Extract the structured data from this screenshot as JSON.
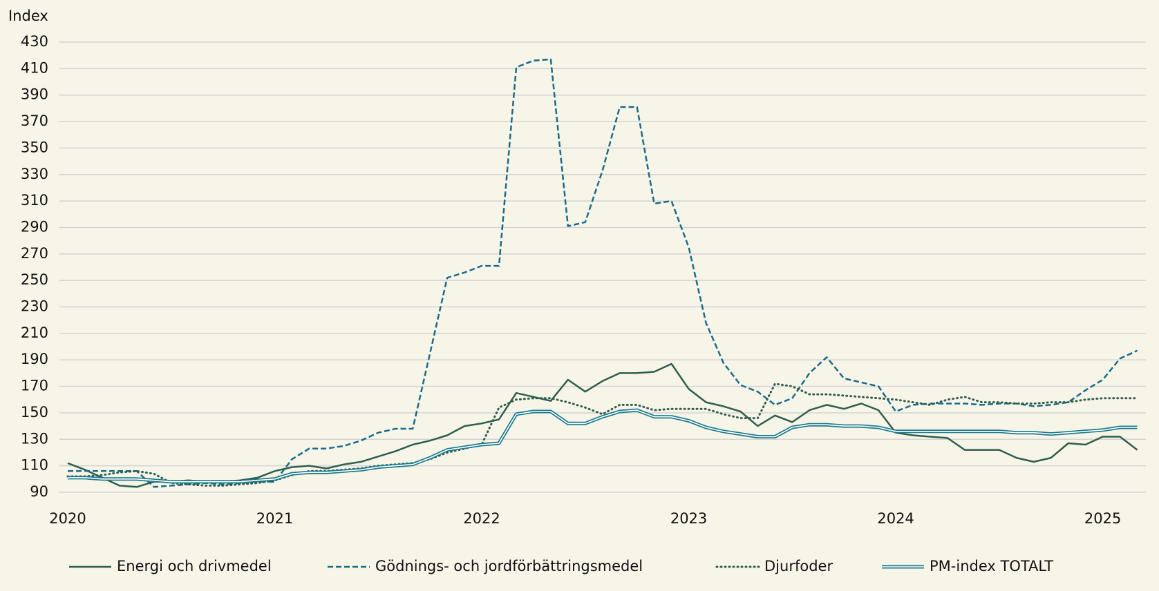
{
  "chart_data": {
    "type": "line",
    "y_label": "Index",
    "categories": [
      "2020",
      null,
      null,
      null,
      null,
      null,
      null,
      null,
      null,
      null,
      null,
      null,
      "2021",
      null,
      null,
      null,
      null,
      null,
      null,
      null,
      null,
      null,
      null,
      null,
      "2022",
      null,
      null,
      null,
      null,
      null,
      null,
      null,
      null,
      null,
      null,
      null,
      "2023",
      null,
      null,
      null,
      null,
      null,
      null,
      null,
      null,
      null,
      null,
      null,
      "2024",
      null,
      null,
      null,
      null,
      null,
      null,
      null,
      null,
      null,
      null,
      null,
      "2025",
      null,
      null
    ],
    "ylim": [
      90,
      430
    ],
    "yticks": [
      90,
      110,
      130,
      150,
      170,
      190,
      210,
      230,
      250,
      270,
      290,
      310,
      330,
      350,
      370,
      390,
      410,
      430
    ],
    "grid": true,
    "legend": "bottom",
    "series": [
      {
        "name": "Energi och drivmedel",
        "color": "#2e5e4e",
        "style": "solid",
        "values": [
          112,
          107,
          101,
          95,
          94,
          98,
          98,
          99,
          98,
          98,
          99,
          101,
          106,
          109,
          110,
          108,
          111,
          113,
          117,
          121,
          126,
          129,
          133,
          140,
          142,
          145,
          165,
          162,
          159,
          175,
          166,
          174,
          180,
          180,
          181,
          187,
          168,
          158,
          155,
          151,
          140,
          148,
          143,
          152,
          156,
          153,
          157,
          152,
          135,
          133,
          132,
          131,
          122,
          122,
          122,
          116,
          113,
          116,
          127,
          126,
          132,
          132,
          122
        ]
      },
      {
        "name": "Gödnings- och jordförbättringsmedel",
        "color": "#1a6a8a",
        "style": "dashed",
        "values": [
          106,
          106,
          106,
          106,
          106,
          94,
          95,
          96,
          97,
          96,
          97,
          98,
          98,
          115,
          123,
          123,
          125,
          129,
          135,
          138,
          138,
          195,
          252,
          256,
          261,
          261,
          411,
          416,
          417,
          291,
          294,
          333,
          381,
          381,
          308,
          310,
          275,
          218,
          188,
          171,
          166,
          156,
          161,
          180,
          192,
          176,
          173,
          170,
          151,
          156,
          157,
          157,
          157,
          156,
          157,
          157,
          155,
          156,
          158,
          167,
          175,
          191,
          197
        ]
      },
      {
        "name": "Djurfoder",
        "color": "#2e5e4e",
        "style": "dotted",
        "values": [
          102,
          102,
          103,
          105,
          106,
          104,
          97,
          96,
          95,
          95,
          96,
          97,
          99,
          103,
          106,
          106,
          107,
          108,
          110,
          111,
          112,
          115,
          120,
          123,
          126,
          154,
          160,
          161,
          161,
          158,
          154,
          149,
          156,
          156,
          152,
          153,
          153,
          153,
          149,
          146,
          146,
          172,
          170,
          164,
          164,
          163,
          162,
          161,
          160,
          158,
          156,
          160,
          162,
          158,
          158,
          157,
          157,
          158,
          158,
          160,
          161,
          161,
          161
        ]
      },
      {
        "name": "PM-index TOTALT",
        "color": "#1a7a8c",
        "style": "double",
        "values": [
          101,
          101,
          100,
          100,
          100,
          99,
          98,
          98,
          98,
          98,
          98,
          99,
          100,
          104,
          105,
          105,
          106,
          107,
          109,
          110,
          111,
          116,
          122,
          124,
          126,
          127,
          149,
          151,
          151,
          142,
          142,
          147,
          151,
          152,
          147,
          147,
          144,
          139,
          136,
          134,
          132,
          132,
          139,
          141,
          141,
          140,
          140,
          139,
          136,
          136,
          136,
          136,
          136,
          136,
          136,
          135,
          135,
          134,
          135,
          136,
          137,
          139,
          139
        ]
      }
    ]
  }
}
